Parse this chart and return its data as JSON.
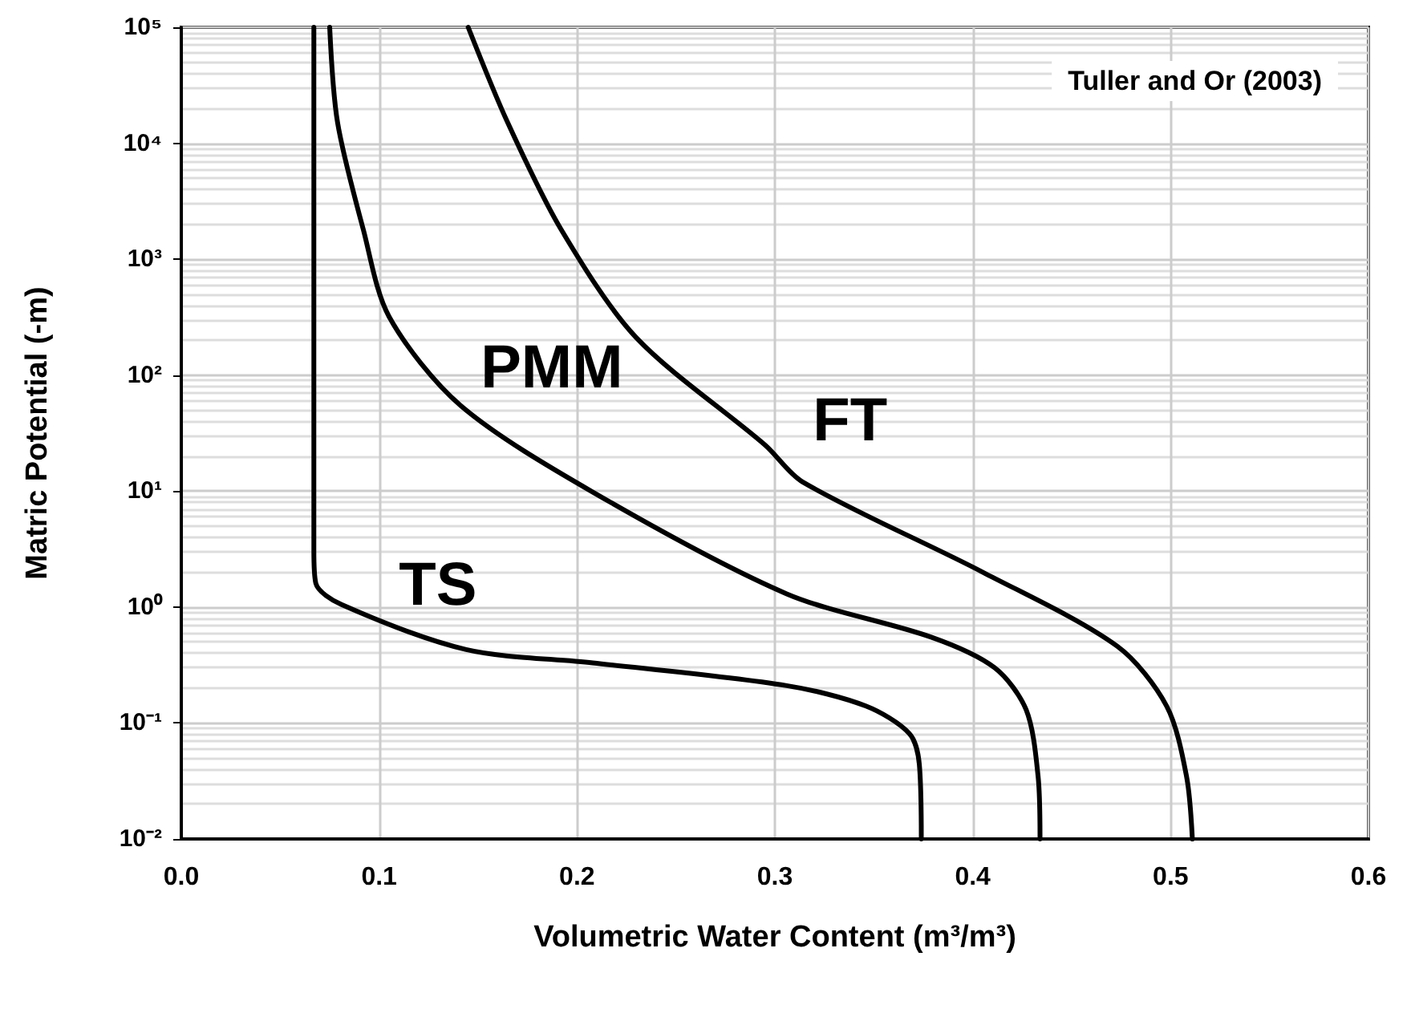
{
  "chart_data": {
    "type": "line",
    "xlabel": "Volumetric Water Content (m³/m³)",
    "ylabel": "Matric Potential (-m)",
    "annotations": [
      "Tuller and Or (2003)"
    ],
    "series": [
      {
        "name": "TS",
        "color": "#000000",
        "x": [
          0.067,
          0.067,
          0.068,
          0.081,
          0.144,
          0.208,
          0.306,
          0.346,
          0.368,
          0.373,
          0.374
        ],
        "values": [
          100000,
          3.1,
          1.6,
          1.05,
          0.43,
          0.33,
          0.21,
          0.14,
          0.081,
          0.044,
          0.01
        ]
      },
      {
        "name": "PMM",
        "color": "#000000",
        "x": [
          0.075,
          0.079,
          0.092,
          0.105,
          0.141,
          0.208,
          0.306,
          0.379,
          0.411,
          0.427,
          0.433,
          0.434
        ],
        "values": [
          100000,
          15000,
          1800,
          320,
          55,
          9.8,
          1.3,
          0.55,
          0.3,
          0.13,
          0.035,
          0.01
        ]
      },
      {
        "name": "FT",
        "color": "#000000",
        "x": [
          0.145,
          0.165,
          0.192,
          0.23,
          0.295,
          0.314,
          0.405,
          0.473,
          0.498,
          0.508,
          0.511
        ],
        "values": [
          100000,
          15000,
          1800,
          210,
          25,
          12,
          2,
          0.46,
          0.14,
          0.035,
          0.01
        ]
      }
    ],
    "xlim": [
      0,
      0.6
    ],
    "xticks": [
      {
        "value": 0,
        "label": "0.0"
      },
      0.1,
      0.2,
      0.3,
      0.4,
      0.5,
      0.6
    ],
    "ylim": [
      0.01,
      100000
    ],
    "yticks": [
      {
        "value": 0.01,
        "label": "10⁻²"
      },
      {
        "value": 0.1,
        "label": "10⁻¹"
      },
      {
        "value": 1,
        "label": "10⁰"
      },
      {
        "value": 10,
        "label": "10¹"
      },
      {
        "value": 100,
        "label": "10²"
      },
      {
        "value": 1000,
        "label": "10³"
      },
      {
        "value": 10000,
        "label": "10⁴"
      },
      {
        "value": 100000,
        "label": "10⁵"
      }
    ],
    "log": "y",
    "grid": true,
    "marker": "none",
    "line_style": "solid"
  }
}
